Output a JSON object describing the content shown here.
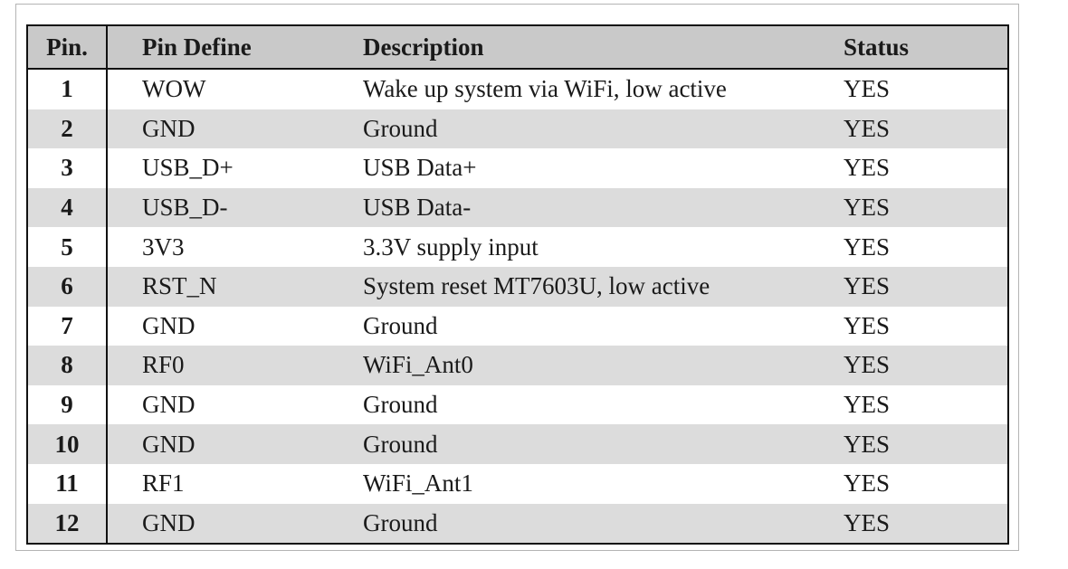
{
  "table": {
    "headers": [
      "Pin.",
      "Pin Define",
      "Description",
      "Status"
    ],
    "rows": [
      {
        "pin": "1",
        "define": "WOW",
        "description": "Wake up system via WiFi, low active",
        "status": "YES"
      },
      {
        "pin": "2",
        "define": "GND",
        "description": "Ground",
        "status": "YES"
      },
      {
        "pin": "3",
        "define": "USB_D+",
        "description": "USB Data+",
        "status": "YES"
      },
      {
        "pin": "4",
        "define": "USB_D-",
        "description": "USB Data-",
        "status": "YES"
      },
      {
        "pin": "5",
        "define": "3V3",
        "description": "3.3V supply input",
        "status": "YES"
      },
      {
        "pin": "6",
        "define": "RST_N",
        "description": "System reset MT7603U, low active",
        "status": "YES"
      },
      {
        "pin": "7",
        "define": "GND",
        "description": "Ground",
        "status": "YES"
      },
      {
        "pin": "8",
        "define": "RF0",
        "description": "WiFi_Ant0",
        "status": "YES"
      },
      {
        "pin": "9",
        "define": "GND",
        "description": "Ground",
        "status": "YES"
      },
      {
        "pin": "10",
        "define": "GND",
        "description": "Ground",
        "status": "YES"
      },
      {
        "pin": "11",
        "define": "RF1",
        "description": "WiFi_Ant1",
        "status": "YES"
      },
      {
        "pin": "12",
        "define": "GND",
        "description": "Ground",
        "status": "YES"
      }
    ]
  },
  "colors": {
    "header_bg": "#c9c9c9",
    "alt_row_bg": "#dcdcdc",
    "border": "#111111"
  }
}
